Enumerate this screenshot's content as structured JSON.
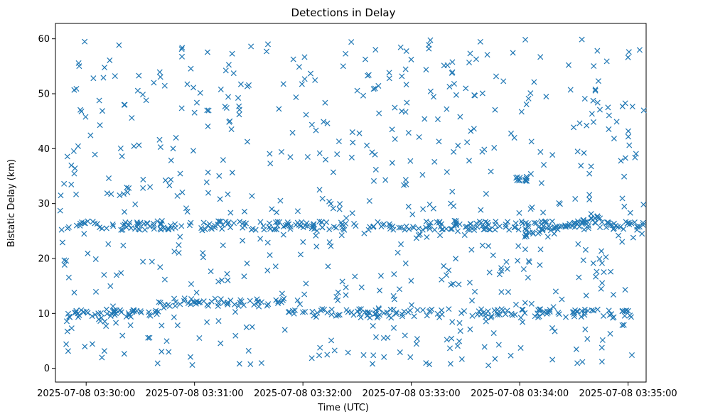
{
  "chart_data": {
    "type": "scatter",
    "title": "Detections in Delay",
    "xlabel": "Time (UTC)",
    "ylabel": "Bistatic Delay (km)",
    "x_unit": "seconds",
    "x_ticks": [
      {
        "value": 0,
        "label": "2025-07-08 03:30:00"
      },
      {
        "value": 60,
        "label": "2025-07-08 03:31:00"
      },
      {
        "value": 120,
        "label": "2025-07-08 03:32:00"
      },
      {
        "value": 180,
        "label": "2025-07-08 03:33:00"
      },
      {
        "value": 240,
        "label": "2025-07-08 03:34:00"
      },
      {
        "value": 300,
        "label": "2025-07-08 03:35:00"
      }
    ],
    "y_ticks": [
      0,
      10,
      20,
      30,
      40,
      50,
      60
    ],
    "xlim": [
      -17,
      310
    ],
    "ylim": [
      -2.5,
      62.8
    ],
    "marker": "x",
    "color": "#1f77b4",
    "grid": false,
    "series": [
      {
        "name": "",
        "x": [
          -15,
          -14,
          -13,
          -12,
          -11,
          -10,
          -9,
          -8,
          -7,
          -6,
          -5,
          -4,
          -3,
          -2,
          -1,
          0,
          1,
          2,
          3,
          4,
          5,
          6,
          7,
          8,
          9,
          10,
          11,
          12,
          13,
          14,
          15,
          16,
          17,
          18,
          19,
          20,
          21,
          22,
          23,
          24,
          25,
          26,
          27,
          28,
          29,
          30,
          31,
          32,
          33,
          34,
          35,
          36,
          37,
          38,
          39,
          40,
          41,
          42,
          43,
          44,
          45,
          46,
          47,
          48,
          49,
          50,
          51,
          52,
          53,
          54,
          55,
          56,
          57,
          58,
          59,
          60,
          61,
          62,
          63,
          64,
          65,
          66,
          67,
          68,
          69,
          70,
          71,
          72,
          73,
          74,
          75,
          76,
          77,
          78,
          79,
          80,
          81,
          82,
          83,
          84,
          85,
          86,
          87,
          88,
          89,
          90,
          91,
          92,
          93,
          94,
          95,
          96,
          97,
          98,
          99,
          100,
          101,
          102,
          103,
          104,
          105,
          106,
          107,
          108,
          109,
          110,
          111,
          112,
          113,
          114,
          115,
          116,
          117,
          118,
          119,
          120,
          121,
          122,
          123,
          124,
          125,
          126,
          127,
          128,
          129,
          130,
          131,
          132,
          133,
          134,
          135,
          136,
          137,
          138,
          139,
          140,
          141,
          142,
          143,
          144,
          145,
          146,
          147,
          148,
          149,
          150,
          151,
          152,
          153,
          154,
          155,
          156,
          157,
          158,
          159,
          160,
          161,
          162,
          163,
          164,
          165,
          166,
          167,
          168,
          169,
          170,
          171,
          172,
          173,
          174,
          175,
          176,
          177,
          178,
          179,
          180,
          181,
          182,
          183,
          184,
          185,
          186,
          187,
          188,
          189,
          190,
          191,
          192,
          193,
          194,
          195,
          196,
          197,
          198,
          199,
          200,
          201,
          202,
          203,
          204,
          205,
          206,
          207,
          208,
          209,
          210,
          211,
          212,
          213,
          214,
          215,
          216,
          217,
          218,
          219,
          220,
          221,
          222,
          223,
          224,
          225,
          226,
          227,
          228,
          229,
          230,
          231,
          232,
          233,
          234,
          235,
          236,
          237,
          238,
          239,
          240,
          241,
          242,
          243,
          244,
          245,
          246,
          247,
          248,
          249,
          250,
          251,
          252,
          253,
          254,
          255,
          256,
          257,
          258,
          259,
          260,
          261,
          262,
          263,
          264,
          265,
          266,
          267,
          268,
          269,
          270,
          271,
          272,
          273,
          274,
          275,
          276,
          277,
          278,
          279,
          280,
          281,
          282,
          283,
          284,
          285,
          286,
          287,
          288,
          289,
          290,
          291,
          292,
          293,
          294,
          295,
          296,
          297,
          298,
          299,
          300,
          301,
          302,
          303,
          304,
          305,
          306,
          307,
          308,
          309
        ],
        "y_pattern": "synthetic"
      }
    ]
  }
}
